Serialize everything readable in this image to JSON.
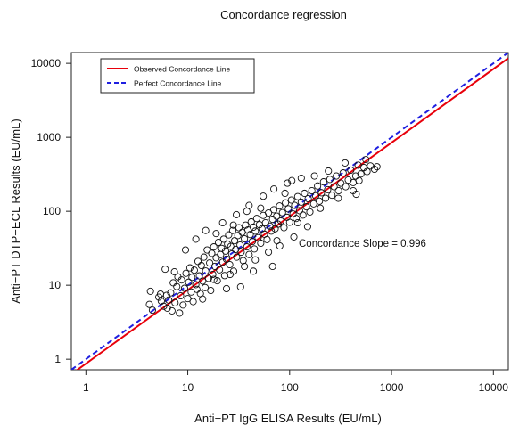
{
  "chart_data": {
    "type": "scatter",
    "title": "Concordance regression",
    "xlabel": "Anti−PT IgG ELISA Results (EU/mL)",
    "ylabel": "Anti−PT DTP−ECL Results (EU/mL)",
    "xscale": "log",
    "yscale": "log",
    "xlim": [
      0.72,
      14000
    ],
    "ylim": [
      0.72,
      14000
    ],
    "xticks": [
      1,
      10,
      100,
      1000,
      10000
    ],
    "xtick_labels": [
      "1",
      "10",
      "100",
      "1000",
      "10000"
    ],
    "yticks": [
      1,
      10,
      100,
      1000,
      10000
    ],
    "ytick_labels": [
      "1",
      "10",
      "100",
      "1000",
      "10000"
    ],
    "grid": false,
    "legend_position": "top-left",
    "legend": [
      {
        "label": "Observed Concordance Line",
        "color": "#e8000b",
        "style": "solid"
      },
      {
        "label": "Perfect Concordance Line",
        "color": "#1f1fe0",
        "style": "dashed"
      }
    ],
    "annotation": "Concordance Slope = 0.996",
    "lines": [
      {
        "name": "Observed Concordance Line",
        "slope": 0.996,
        "intercept_log10": -0.06,
        "color": "#e8000b",
        "style": "solid"
      },
      {
        "name": "Perfect Concordance Line",
        "slope": 1.0,
        "intercept_log10": 0.0,
        "color": "#1f1fe0",
        "style": "dashed"
      }
    ],
    "points": [
      [
        4.2,
        5.5
      ],
      [
        4.3,
        8.3
      ],
      [
        4.5,
        4.6
      ],
      [
        5.2,
        6.9
      ],
      [
        5.4,
        7.6
      ],
      [
        5.5,
        6.1
      ],
      [
        5.8,
        5.2
      ],
      [
        6.0,
        16.5
      ],
      [
        6.2,
        7.3
      ],
      [
        6.3,
        4.9
      ],
      [
        6.5,
        6.3
      ],
      [
        6.8,
        7.9
      ],
      [
        7.0,
        4.5
      ],
      [
        7.2,
        10.8
      ],
      [
        7.4,
        15.2
      ],
      [
        7.5,
        5.8
      ],
      [
        7.8,
        9.6
      ],
      [
        8.0,
        13.0
      ],
      [
        8.3,
        4.2
      ],
      [
        8.5,
        7.2
      ],
      [
        8.7,
        11.8
      ],
      [
        9.0,
        5.4
      ],
      [
        9.3,
        9.1
      ],
      [
        9.6,
        14.5
      ],
      [
        10.0,
        6.6
      ],
      [
        10.2,
        11.0
      ],
      [
        10.5,
        17.2
      ],
      [
        10.8,
        8.1
      ],
      [
        11.0,
        12.8
      ],
      [
        11.3,
        6.0
      ],
      [
        11.6,
        16.0
      ],
      [
        12.0,
        10.2
      ],
      [
        12.3,
        8.8
      ],
      [
        12.6,
        21.0
      ],
      [
        13.0,
        13.4
      ],
      [
        13.3,
        7.7
      ],
      [
        13.6,
        18.5
      ],
      [
        14.0,
        11.4
      ],
      [
        14.4,
        24.0
      ],
      [
        14.8,
        9.3
      ],
      [
        15.0,
        15.6
      ],
      [
        15.5,
        30.0
      ],
      [
        16.0,
        12.4
      ],
      [
        16.4,
        20.0
      ],
      [
        16.8,
        8.5
      ],
      [
        17.2,
        27.0
      ],
      [
        17.6,
        14.0
      ],
      [
        18.0,
        33.0
      ],
      [
        18.5,
        18.0
      ],
      [
        19.0,
        23.5
      ],
      [
        19.5,
        11.5
      ],
      [
        20.0,
        38.0
      ],
      [
        20.5,
        16.2
      ],
      [
        21.0,
        26.0
      ],
      [
        21.5,
        31.5
      ],
      [
        22.0,
        20.5
      ],
      [
        22.5,
        42.0
      ],
      [
        23.0,
        13.5
      ],
      [
        23.5,
        29.0
      ],
      [
        24.0,
        22.5
      ],
      [
        24.6,
        36.0
      ],
      [
        25.2,
        48.0
      ],
      [
        25.8,
        19.0
      ],
      [
        26.4,
        33.5
      ],
      [
        27.0,
        26.5
      ],
      [
        27.6,
        55.0
      ],
      [
        28.2,
        15.5
      ],
      [
        28.8,
        40.0
      ],
      [
        29.5,
        30.5
      ],
      [
        30.2,
        24.0
      ],
      [
        31.0,
        47.0
      ],
      [
        31.8,
        60.0
      ],
      [
        32.6,
        35.0
      ],
      [
        33.4,
        28.0
      ],
      [
        34.2,
        52.0
      ],
      [
        35.0,
        21.5
      ],
      [
        36.0,
        42.5
      ],
      [
        37.0,
        65.0
      ],
      [
        38.0,
        33.0
      ],
      [
        39.0,
        56.0
      ],
      [
        40.0,
        26.0
      ],
      [
        41.0,
        48.5
      ],
      [
        42.0,
        72.0
      ],
      [
        43.0,
        39.0
      ],
      [
        44.0,
        61.0
      ],
      [
        45.0,
        31.0
      ],
      [
        46.0,
        54.0
      ],
      [
        47.5,
        80.0
      ],
      [
        49.0,
        44.0
      ],
      [
        50.5,
        66.0
      ],
      [
        52.0,
        37.0
      ],
      [
        53.5,
        58.0
      ],
      [
        55.0,
        88.0
      ],
      [
        56.5,
        49.0
      ],
      [
        58.0,
        70.0
      ],
      [
        60.0,
        41.5
      ],
      [
        62.0,
        95.0
      ],
      [
        64.0,
        63.0
      ],
      [
        66.0,
        54.0
      ],
      [
        68.0,
        78.0
      ],
      [
        70.0,
        105.0
      ],
      [
        72.0,
        58.0
      ],
      [
        74.5,
        86.0
      ],
      [
        77.0,
        67.0
      ],
      [
        79.5,
        118.0
      ],
      [
        82.0,
        74.0
      ],
      [
        85.0,
        96.0
      ],
      [
        88.0,
        60.0
      ],
      [
        91.0,
        130.0
      ],
      [
        94.0,
        83.0
      ],
      [
        97.0,
        108.0
      ],
      [
        100.0,
        71.0
      ],
      [
        104.0,
        142.0
      ],
      [
        108.0,
        92.0
      ],
      [
        112.0,
        120.0
      ],
      [
        116.0,
        80.0
      ],
      [
        120.0,
        158.0
      ],
      [
        125.0,
        102.0
      ],
      [
        130.0,
        133.0
      ],
      [
        135.0,
        89.0
      ],
      [
        140.0,
        175.0
      ],
      [
        146.0,
        115.0
      ],
      [
        152.0,
        148.0
      ],
      [
        158.0,
        98.0
      ],
      [
        165.0,
        190.0
      ],
      [
        172.0,
        126.0
      ],
      [
        180.0,
        162.0
      ],
      [
        188.0,
        220.0
      ],
      [
        196.0,
        137.0
      ],
      [
        205.0,
        178.0
      ],
      [
        215.0,
        250.0
      ],
      [
        225.0,
        150.0
      ],
      [
        236.0,
        196.0
      ],
      [
        248.0,
        270.0
      ],
      [
        260.0,
        165.0
      ],
      [
        273.0,
        215.0
      ],
      [
        287.0,
        300.0
      ],
      [
        302.0,
        190.0
      ],
      [
        318.0,
        240.0
      ],
      [
        335.0,
        330.0
      ],
      [
        355.0,
        215.0
      ],
      [
        376.0,
        265.0
      ],
      [
        398.0,
        360.0
      ],
      [
        420.0,
        245.0
      ],
      [
        445.0,
        300.0
      ],
      [
        470.0,
        420.0
      ],
      [
        500.0,
        320.0
      ],
      [
        535.0,
        390.0
      ],
      [
        575.0,
        345.0
      ],
      [
        620.0,
        410.0
      ],
      [
        680.0,
        370.0
      ],
      [
        720.0,
        400.0
      ],
      [
        12.0,
        42.0
      ],
      [
        15.0,
        55.0
      ],
      [
        18.0,
        12.0
      ],
      [
        22.0,
        70.0
      ],
      [
        26.0,
        14.0
      ],
      [
        30.0,
        90.0
      ],
      [
        36.0,
        18.0
      ],
      [
        40.0,
        120.0
      ],
      [
        46.0,
        22.0
      ],
      [
        55.0,
        160.0
      ],
      [
        62.0,
        28.0
      ],
      [
        70.0,
        200.0
      ],
      [
        80.0,
        34.0
      ],
      [
        95.0,
        240.0
      ],
      [
        110.0,
        45.0
      ],
      [
        130.0,
        280.0
      ],
      [
        150.0,
        62.0
      ],
      [
        175.0,
        300.0
      ],
      [
        68.0,
        18.0
      ],
      [
        33.0,
        9.5
      ],
      [
        9.5,
        30.0
      ],
      [
        14.0,
        6.5
      ],
      [
        19.0,
        50.0
      ],
      [
        24.0,
        9.0
      ],
      [
        28.0,
        65.0
      ],
      [
        44.0,
        15.5
      ],
      [
        52.0,
        110.0
      ],
      [
        75.0,
        40.0
      ],
      [
        90.0,
        175.0
      ],
      [
        120.0,
        70.0
      ],
      [
        200.0,
        110.0
      ],
      [
        240.0,
        350.0
      ],
      [
        300.0,
        150.0
      ],
      [
        350.0,
        450.0
      ],
      [
        420.0,
        190.0
      ],
      [
        480.0,
        260.0
      ],
      [
        560.0,
        500.0
      ],
      [
        450.0,
        170.0
      ],
      [
        105.0,
        260.0
      ],
      [
        38.0,
        100.0
      ]
    ]
  }
}
